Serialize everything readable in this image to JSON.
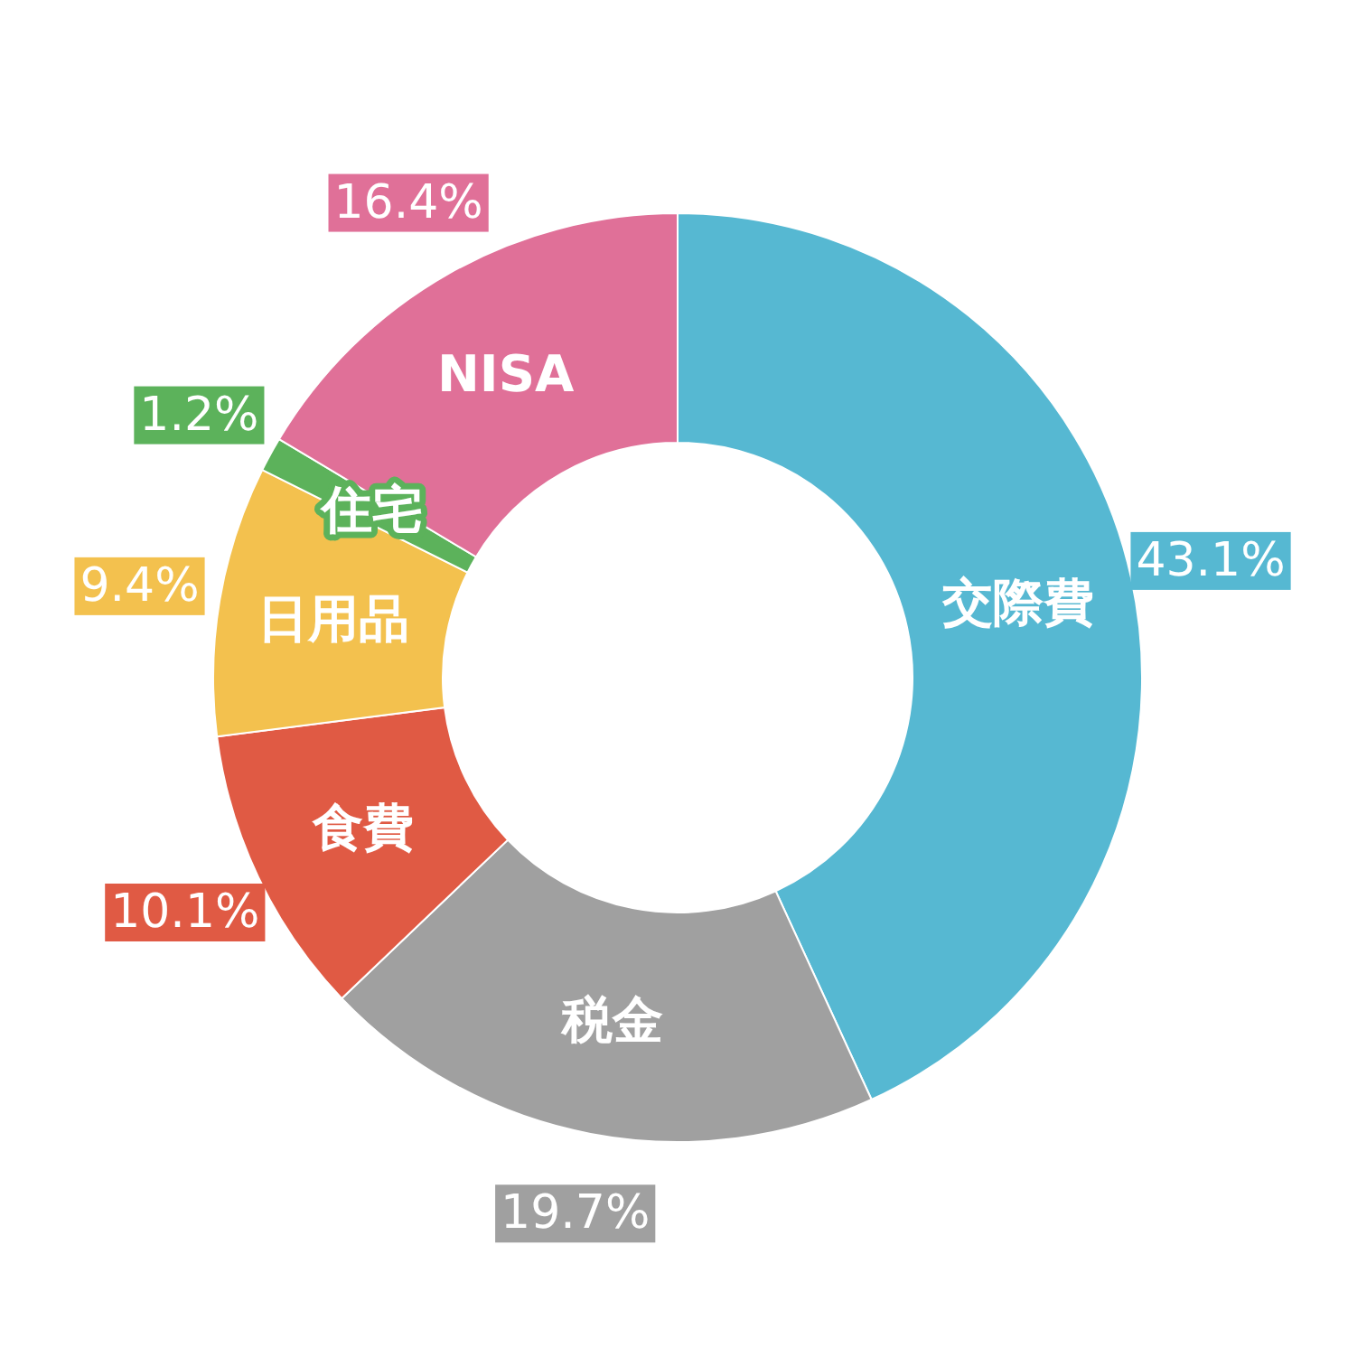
{
  "chart_data": {
    "type": "donut",
    "categories": [
      "交際費",
      "税金",
      "食費",
      "日用品",
      "住宅",
      "NISA"
    ],
    "values": [
      43.1,
      19.7,
      10.1,
      9.4,
      1.2,
      16.4
    ],
    "colors": [
      "#56b8d2",
      "#a0a0a0",
      "#e05a44",
      "#f3c14e",
      "#5cb25b",
      "#e07098"
    ],
    "value_labels": [
      "43.1%",
      "19.7%",
      "10.1%",
      "9.4%",
      "1.2%",
      "16.4%"
    ]
  }
}
